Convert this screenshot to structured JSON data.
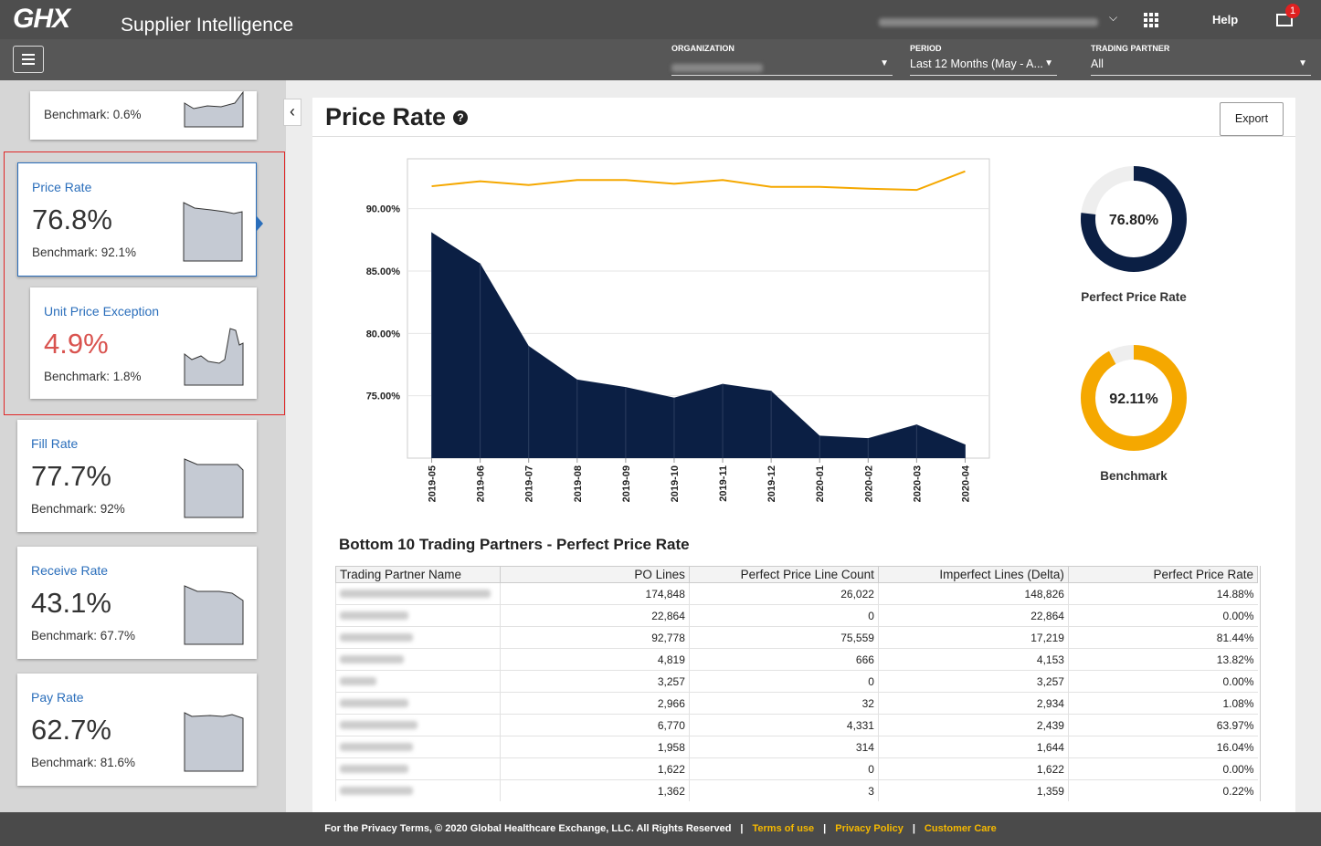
{
  "header": {
    "logo": "GHX",
    "app": "Supplier Intelligence",
    "help": "Help",
    "notifications": "1"
  },
  "filters": [
    {
      "label": "ORGANIZATION"
    },
    {
      "label": "PERIOD",
      "value": "Last 12 Months (May - A..."
    },
    {
      "label": "TRADING PARTNER",
      "value": "All"
    }
  ],
  "cards": [
    {
      "benchmark": "Benchmark: 0.6%"
    },
    {
      "label": "Price Rate",
      "value": "76.8%",
      "benchmark": "Benchmark: 92.1%"
    },
    {
      "label": "Unit Price Exception",
      "value": "4.9%",
      "benchmark": "Benchmark: 1.8%"
    },
    {
      "label": "Fill Rate",
      "value": "77.7%",
      "benchmark": "Benchmark: 92%"
    },
    {
      "label": "Receive Rate",
      "value": "43.1%",
      "benchmark": "Benchmark: 67.7%"
    },
    {
      "label": "Pay Rate",
      "value": "62.7%",
      "benchmark": "Benchmark: 81.6%"
    }
  ],
  "panel": {
    "title": "Price Rate",
    "export": "Export"
  },
  "chart_data": {
    "type": "area",
    "categories": [
      "2019-05",
      "2019-06",
      "2019-07",
      "2019-08",
      "2019-09",
      "2019-10",
      "2019-11",
      "2019-12",
      "2020-01",
      "2020-02",
      "2020-03",
      "2020-04"
    ],
    "series": [
      {
        "type": "area",
        "color": "#0b1f44",
        "values": [
          88.1,
          85.6,
          79.0,
          76.3,
          75.7,
          74.85,
          75.95,
          75.4,
          71.8,
          71.6,
          72.7,
          71.1
        ]
      },
      {
        "type": "line",
        "color": "#f5a800",
        "values": [
          91.8,
          92.2,
          91.9,
          92.3,
          92.3,
          92.0,
          92.3,
          91.75,
          91.75,
          91.6,
          91.5,
          93.0
        ]
      }
    ],
    "ylim": [
      70,
      94
    ],
    "yticks": [
      {
        "value": 75,
        "label": "75.00%"
      },
      {
        "value": 80,
        "label": "80.00%"
      },
      {
        "value": 85,
        "label": "85.00%"
      },
      {
        "value": 90,
        "label": "90.00%"
      }
    ],
    "grid": true
  },
  "donuts": [
    {
      "type": "donut",
      "value": 76.8,
      "value_label": "76.80%",
      "label": "Perfect Price Rate",
      "color": "#0b1f44",
      "track": "#eeeeee"
    },
    {
      "type": "donut",
      "value": 92.11,
      "value_label": "92.11%",
      "label": "Benchmark",
      "color": "#f5a800",
      "track": "#eeeeee"
    }
  ],
  "table": {
    "title": "Bottom 10 Trading Partners - Perfect Price Rate",
    "columns": [
      "Trading Partner Name",
      "PO Lines",
      "Perfect Price Line Count",
      "Imperfect Lines (Delta)",
      "Perfect Price Rate"
    ],
    "rows": [
      [
        "174,848",
        "26,022",
        "148,826",
        "14.88%"
      ],
      [
        "22,864",
        "0",
        "22,864",
        "0.00%"
      ],
      [
        "92,778",
        "75,559",
        "17,219",
        "81.44%"
      ],
      [
        "4,819",
        "666",
        "4,153",
        "13.82%"
      ],
      [
        "3,257",
        "0",
        "3,257",
        "0.00%"
      ],
      [
        "2,966",
        "32",
        "2,934",
        "1.08%"
      ],
      [
        "6,770",
        "4,331",
        "2,439",
        "63.97%"
      ],
      [
        "1,958",
        "314",
        "1,644",
        "16.04%"
      ],
      [
        "1,622",
        "0",
        "1,622",
        "0.00%"
      ],
      [
        "1,362",
        "3",
        "1,359",
        "0.22%"
      ]
    ]
  },
  "footer": {
    "copyright": "For the Privacy Terms, © 2020 Global Healthcare Exchange, LLC. All Rights Reserved",
    "links": [
      "Terms of use",
      "Privacy Policy",
      "Customer Care"
    ]
  }
}
